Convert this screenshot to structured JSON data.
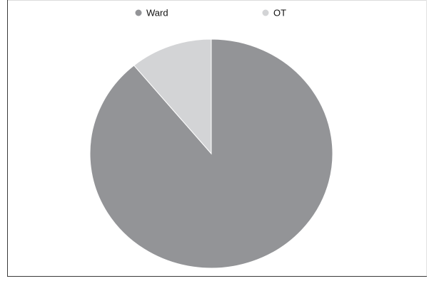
{
  "chart_data": {
    "type": "pie",
    "title": "",
    "legend_position": "top",
    "slices": [
      {
        "label": "Ward",
        "value": 89,
        "color": "#939497"
      },
      {
        "label": "OT",
        "value": 11,
        "color": "#d3d4d6"
      }
    ]
  }
}
